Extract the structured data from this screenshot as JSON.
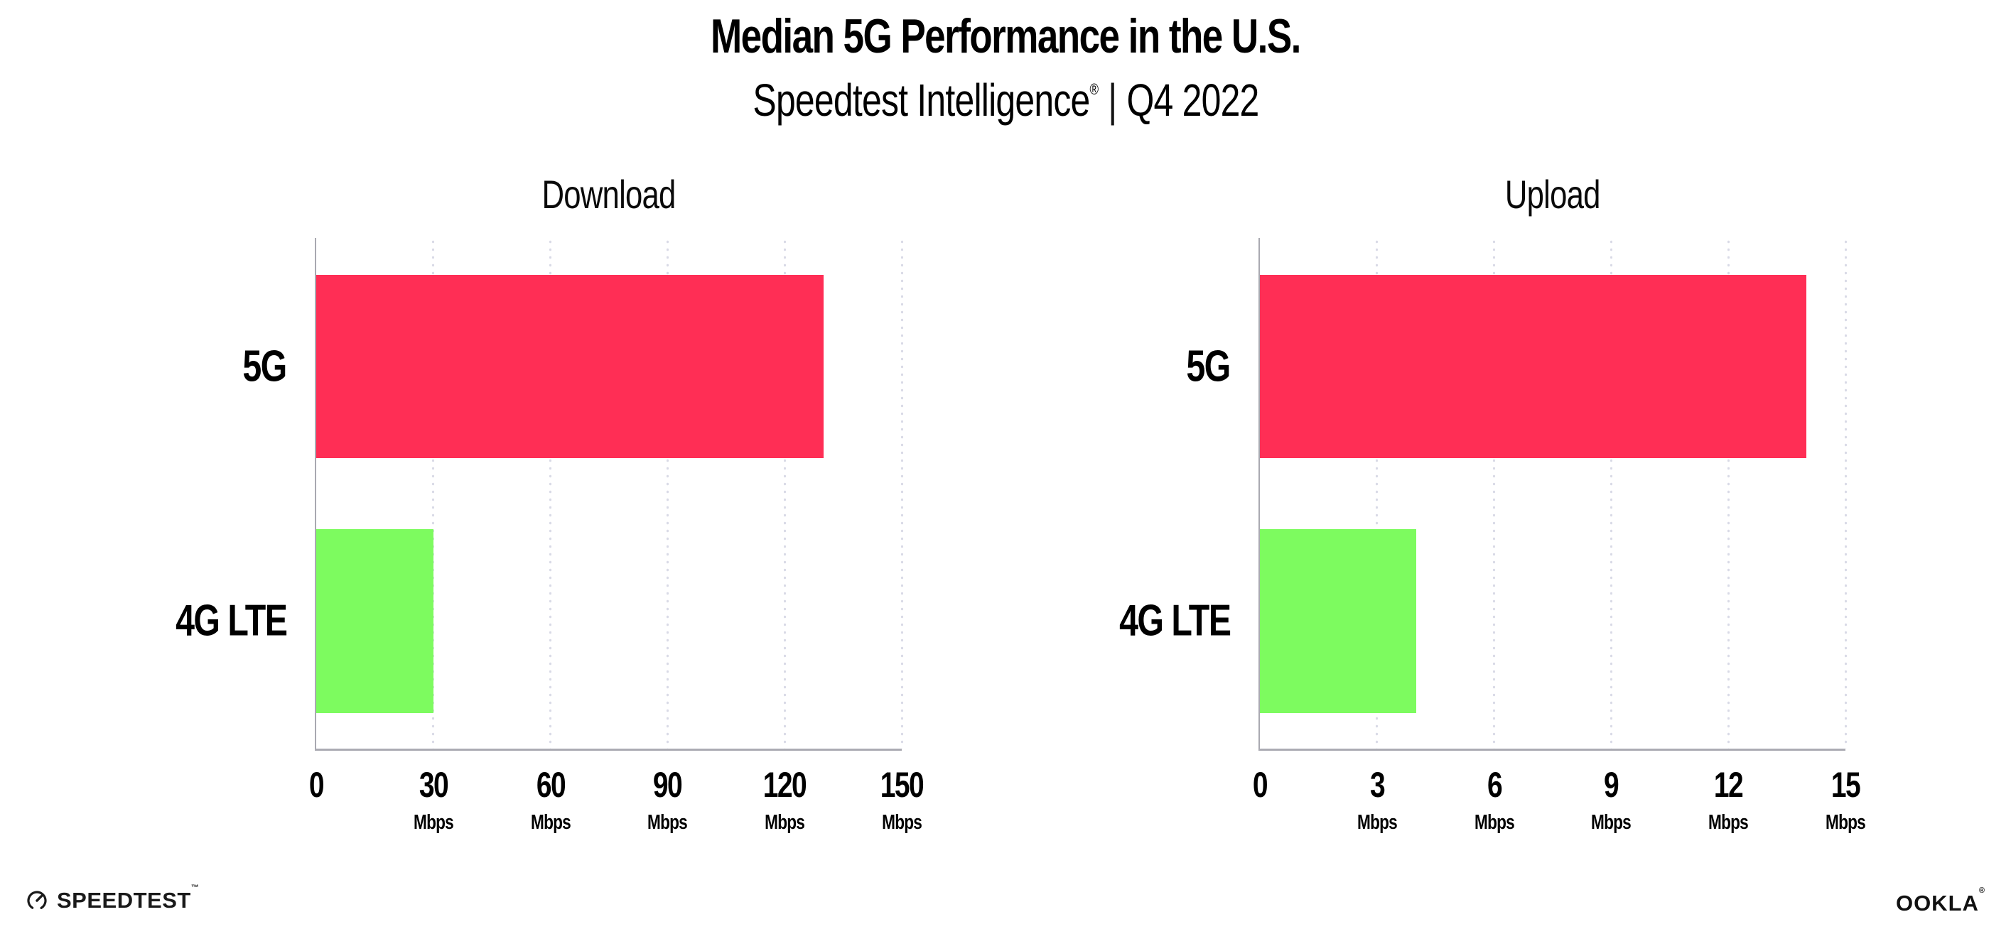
{
  "header": {
    "title": "Median 5G Performance in the U.S.",
    "subtitle_brand": "Speedtest Intelligence",
    "subtitle_reg": "®",
    "subtitle_separator": "|",
    "subtitle_period": "Q4 2022"
  },
  "colors": {
    "series": {
      "5G": "#FF2E55",
      "4G LTE": "#7DFB5F"
    },
    "axis_line": "#ababb3",
    "gridline_dots": "#d9dae6"
  },
  "chart_data": [
    {
      "type": "bar",
      "orientation": "horizontal",
      "title": "Download",
      "categories": [
        "5G",
        "4G LTE"
      ],
      "values": [
        130,
        30
      ],
      "unit": "Mbps",
      "xlim": [
        0,
        150
      ],
      "xticks": [
        0,
        30,
        60,
        90,
        120,
        150
      ],
      "tick_unit": "Mbps",
      "grid": "dotted-vertical",
      "legend": "none"
    },
    {
      "type": "bar",
      "orientation": "horizontal",
      "title": "Upload",
      "categories": [
        "5G",
        "4G LTE"
      ],
      "values": [
        14,
        4
      ],
      "unit": "Mbps",
      "xlim": [
        0,
        15
      ],
      "xticks": [
        0,
        3,
        6,
        9,
        12,
        15
      ],
      "tick_unit": "Mbps",
      "grid": "dotted-vertical",
      "legend": "none"
    }
  ],
  "footer": {
    "speedtest_label": "SPEEDTEST",
    "speedtest_tm": "™",
    "ookla_label": "OOKLA",
    "ookla_reg": "®"
  }
}
